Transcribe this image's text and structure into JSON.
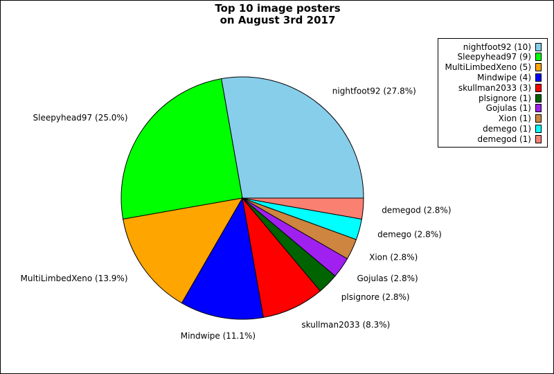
{
  "chart_data": {
    "type": "pie",
    "title_lines": [
      "Top 10 image posters",
      "on August 3rd 2017"
    ],
    "slices": [
      {
        "name": "nightfoot92",
        "count": 10,
        "percent_label": "27.8%",
        "color": "#87ceeb"
      },
      {
        "name": "Sleepyhead97",
        "count": 9,
        "percent_label": "25.0%",
        "color": "#00ff00"
      },
      {
        "name": "MultiLimbedXeno",
        "count": 5,
        "percent_label": "13.9%",
        "color": "#ffa500"
      },
      {
        "name": "Mindwipe",
        "count": 4,
        "percent_label": "11.1%",
        "color": "#0000ff"
      },
      {
        "name": "skullman2033",
        "count": 3,
        "percent_label": "8.3%",
        "color": "#ff0000"
      },
      {
        "name": "plsignore",
        "count": 1,
        "percent_label": "2.8%",
        "color": "#006400"
      },
      {
        "name": "Gojulas",
        "count": 1,
        "percent_label": "2.8%",
        "color": "#a020f0"
      },
      {
        "name": "Xion",
        "count": 1,
        "percent_label": "2.8%",
        "color": "#cd853f"
      },
      {
        "name": "demego",
        "count": 1,
        "percent_label": "2.8%",
        "color": "#00ffff"
      },
      {
        "name": "demegod",
        "count": 1,
        "percent_label": "2.8%",
        "color": "#fa8072"
      }
    ],
    "legend_placement": "top-right"
  }
}
